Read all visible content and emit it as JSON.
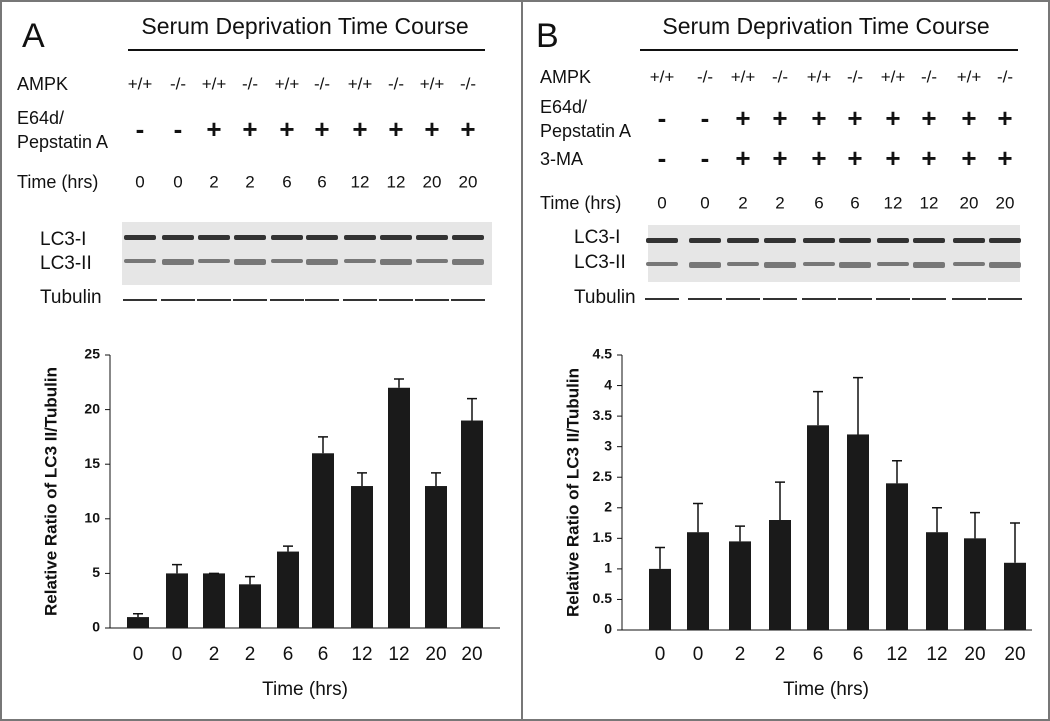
{
  "panels": [
    {
      "label": "A",
      "title": "Serum Deprivation Time Course",
      "rows": [
        {
          "label": [
            "AMPK"
          ],
          "values": [
            "+/+",
            "-/-",
            "+/+",
            "-/-",
            "+/+",
            "-/-",
            "+/+",
            "-/-",
            "+/+",
            "-/-"
          ]
        },
        {
          "label": [
            "E64d/",
            "Pepstatin A"
          ],
          "values": [
            "-",
            "-",
            "+",
            "+",
            "+",
            "+",
            "+",
            "+",
            "+",
            "+"
          ]
        },
        {
          "label": [
            "Time (hrs)"
          ],
          "values": [
            "0",
            "0",
            "2",
            "2",
            "6",
            "6",
            "12",
            "12",
            "20",
            "20"
          ]
        }
      ],
      "blot_labels": [
        "LC3-I",
        "LC3-II",
        "Tubulin"
      ]
    },
    {
      "label": "B",
      "title": "Serum Deprivation Time Course",
      "rows": [
        {
          "label": [
            "AMPK"
          ],
          "values": [
            "+/+",
            "-/-",
            "+/+",
            "-/-",
            "+/+",
            "-/-",
            "+/+",
            "-/-",
            "+/+",
            "-/-"
          ]
        },
        {
          "label": [
            "E64d/",
            "Pepstatin A"
          ],
          "values": [
            "-",
            "-",
            "+",
            "+",
            "+",
            "+",
            "+",
            "+",
            "+",
            "+"
          ]
        },
        {
          "label": [
            "3-MA"
          ],
          "values": [
            "-",
            "-",
            "+",
            "+",
            "+",
            "+",
            "+",
            "+",
            "+",
            "+"
          ]
        },
        {
          "label": [
            "Time (hrs)"
          ],
          "values": [
            "0",
            "0",
            "2",
            "2",
            "6",
            "6",
            "12",
            "12",
            "20",
            "20"
          ]
        }
      ],
      "blot_labels": [
        "LC3-I",
        "LC3-II",
        "Tubulin"
      ]
    }
  ],
  "chart_data": [
    {
      "type": "bar",
      "x_label": "Time (hrs)",
      "y_label": "Relative Ratio of LC3 II/Tubulin",
      "categories": [
        "0",
        "0",
        "2",
        "2",
        "6",
        "6",
        "12",
        "12",
        "20",
        "20"
      ],
      "values": [
        1,
        5,
        5,
        4,
        7,
        16,
        13,
        22,
        13,
        19
      ],
      "errors": [
        0.3,
        0.8,
        0,
        0.7,
        0.5,
        1.5,
        1.2,
        0.8,
        1.2,
        2
      ],
      "color": "#1a1a1a",
      "ylim": [
        0,
        25
      ],
      "yticks": [
        0,
        5,
        10,
        15,
        20,
        25
      ]
    },
    {
      "type": "bar",
      "x_label": "Time (hrs)",
      "y_label": "Relative Ratio of LC3 II/Tubulin",
      "categories": [
        "0",
        "0",
        "2",
        "2",
        "6",
        "6",
        "12",
        "12",
        "20",
        "20"
      ],
      "values": [
        1,
        1.6,
        1.45,
        1.8,
        3.35,
        3.2,
        2.4,
        1.6,
        1.5,
        1.1
      ],
      "errors": [
        0.35,
        0.47,
        0.25,
        0.62,
        0.55,
        0.93,
        0.37,
        0.4,
        0.42,
        0.65
      ],
      "color": "#1a1a1a",
      "ylim": [
        0,
        4.5
      ],
      "yticks": [
        0,
        0.5,
        1,
        1.5,
        2,
        2.5,
        3,
        3.5,
        4,
        4.5
      ]
    }
  ]
}
